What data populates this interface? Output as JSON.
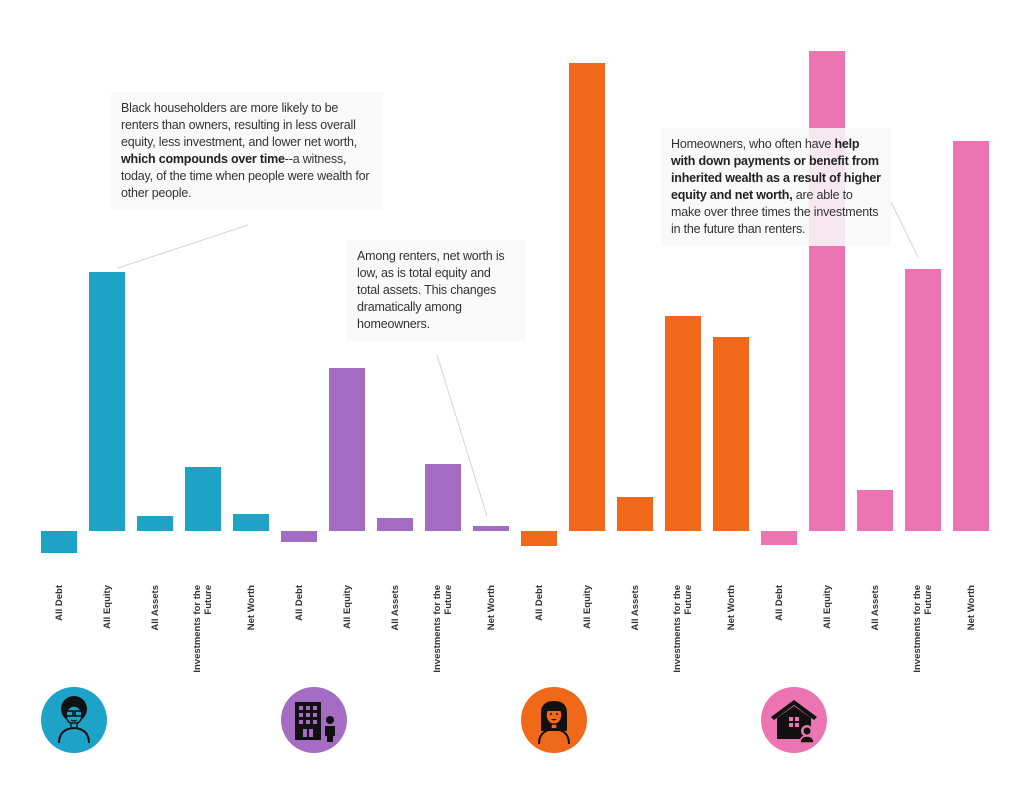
{
  "chart_data": {
    "type": "bar",
    "title": "",
    "xlabel": "",
    "ylabel": "",
    "units": "relative (unlabeled axis; estimated, largest bar = 480)",
    "grid": false,
    "legend": "none (groups identified by avatar icons below)",
    "categories": [
      "All Debt",
      "All Equity",
      "All Assets",
      "Investments for the Future",
      "Net Worth"
    ],
    "category_labels": [
      "All Debt",
      "All Equity",
      "All Assets",
      "Investments for the\nFuture",
      "Net Worth"
    ],
    "ylim": [
      -30,
      480
    ],
    "series": [
      {
        "name": "Black householders",
        "icon": "person-afro-glasses-icon",
        "color": "#1ea3c8",
        "values": [
          -22,
          259,
          15,
          64,
          17
        ]
      },
      {
        "name": "Renters",
        "icon": "building-person-icon",
        "color": "#a46cc2",
        "values": [
          -11,
          163,
          13,
          67,
          5
        ]
      },
      {
        "name": "Householders (woman)",
        "icon": "person-long-hair-icon",
        "color": "#f0691a",
        "values": [
          -15,
          468,
          34,
          215,
          194
        ]
      },
      {
        "name": "Homeowners",
        "icon": "house-person-icon",
        "color": "#ec74b2",
        "values": [
          -14,
          480,
          41,
          262,
          390
        ]
      }
    ],
    "annotations": [
      {
        "id": "note-black-householders",
        "target_series": 0,
        "target_category": 1,
        "parts": [
          {
            "text": "Black householders are more likely to be renters than owners, resulting in less overall equity, less investment, and lower net worth, ",
            "bold": false
          },
          {
            "text": "which compounds over time",
            "bold": true
          },
          {
            "text": "--a witness, today, of the time when people were wealth for other people.",
            "bold": false
          }
        ]
      },
      {
        "id": "note-renters",
        "target_series": 1,
        "target_category": 4,
        "parts": [
          {
            "text": "Among renters, net worth is low, as is total equity and total assets. This changes dramatically among homeowners.",
            "bold": false
          }
        ]
      },
      {
        "id": "note-homeowners",
        "target_series": 3,
        "target_category": 3,
        "parts": [
          {
            "text": "Homeowners, who often have ",
            "bold": false
          },
          {
            "text": "help with down payments or benefit from inherited wealth as a result of higher equity and net worth,",
            "bold": true
          },
          {
            "text": " are able to make over three times the investments in the future than renters.",
            "bold": false
          }
        ]
      }
    ]
  }
}
